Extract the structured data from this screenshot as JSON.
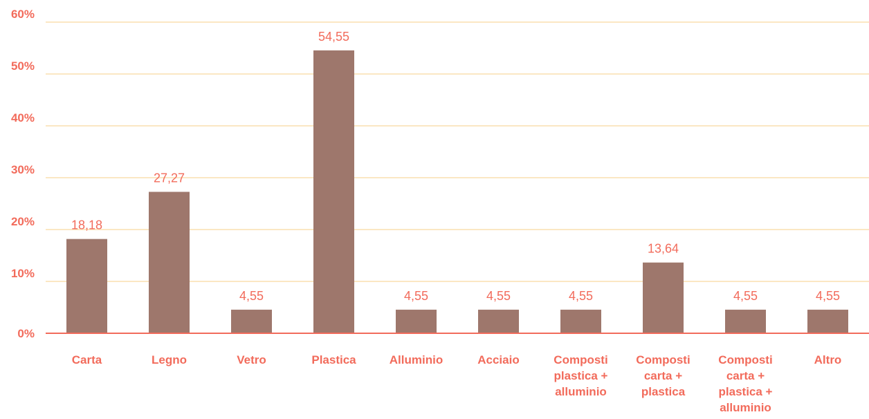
{
  "chart_data": {
    "type": "bar",
    "categories": [
      [
        "Carta"
      ],
      [
        "Legno"
      ],
      [
        "Vetro"
      ],
      [
        "Plastica"
      ],
      [
        "Alluminio"
      ],
      [
        "Acciaio"
      ],
      [
        "Composti",
        "plastica +",
        "alluminio"
      ],
      [
        "Composti",
        "carta +",
        "plastica"
      ],
      [
        "Composti",
        "carta +",
        "plastica +",
        "alluminio"
      ],
      [
        "Altro"
      ]
    ],
    "values": [
      18.18,
      27.27,
      4.55,
      54.55,
      4.55,
      4.55,
      4.55,
      13.64,
      4.55,
      4.55
    ],
    "data_labels": [
      "18,18",
      "27,27",
      "4,55",
      "54,55",
      "4,55",
      "4,55",
      "4,55",
      "13,64",
      "4,55",
      "4,55"
    ],
    "y_ticks": [
      "0%",
      "10%",
      "20%",
      "30%",
      "40%",
      "50%",
      "60%"
    ],
    "ylim": [
      0,
      60
    ],
    "grid": true,
    "colors": {
      "bar": "#9e776c",
      "label": "#f26b5b",
      "grid": "#fbe7c3",
      "axis": "#f26b5b"
    }
  }
}
